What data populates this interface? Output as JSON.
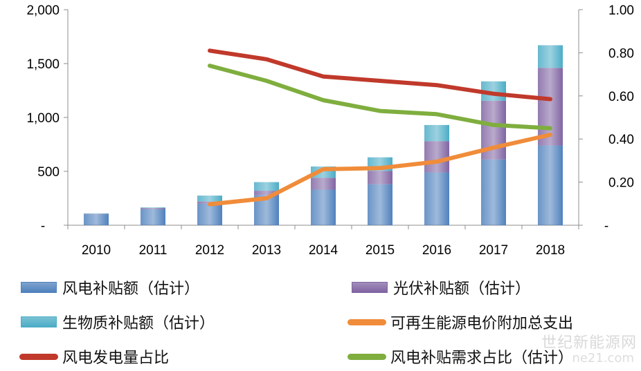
{
  "chart_data": {
    "type": "bar",
    "categories": [
      "2010",
      "2011",
      "2012",
      "2013",
      "2014",
      "2015",
      "2016",
      "2017",
      "2018"
    ],
    "ylim_left": [
      0,
      2000
    ],
    "yticks_left": [
      "-",
      "500",
      "1,000",
      "1,500",
      "2,000"
    ],
    "ylim_right": [
      0,
      1.0
    ],
    "yticks_right": [
      "-",
      "0.20",
      "0.40",
      "0.60",
      "0.80",
      "1.00"
    ],
    "stacked_series": [
      {
        "name": "风电补贴额（估计）",
        "color": "#4f81bd",
        "values": [
          100,
          150,
          200,
          280,
          330,
          380,
          490,
          610,
          740
        ]
      },
      {
        "name": "光伏补贴额（估计）",
        "color": "#8064a2",
        "values": [
          5,
          10,
          20,
          40,
          110,
          125,
          290,
          545,
          720
        ]
      },
      {
        "name": "生物质补贴额（估计）",
        "color": "#4bacc6",
        "values": [
          5,
          5,
          55,
          80,
          105,
          125,
          150,
          180,
          210
        ]
      }
    ],
    "line_series": [
      {
        "name": "可再生能源电价附加总支出",
        "color": "#f08c3a",
        "axis": "left",
        "start_index": 2,
        "values": [
          195,
          250,
          520,
          530,
          590,
          720,
          840
        ]
      },
      {
        "name": "风电发电量占比",
        "color": "#c0392b",
        "axis": "right",
        "start_index": 2,
        "values": [
          0.81,
          0.77,
          0.69,
          0.67,
          0.65,
          0.61,
          0.585
        ]
      },
      {
        "name": "风电补贴需求占比（估计）",
        "color": "#7fae3e",
        "axis": "right",
        "start_index": 2,
        "values": [
          0.74,
          0.67,
          0.58,
          0.53,
          0.515,
          0.465,
          0.45
        ]
      }
    ],
    "legend": [
      {
        "label": "风电补贴额（估计）",
        "kind": "box",
        "color": "#4f81bd"
      },
      {
        "label": "光伏补贴额（估计）",
        "kind": "box",
        "color": "#8064a2"
      },
      {
        "label": "生物质补贴额（估计）",
        "kind": "box",
        "color": "#4bacc6"
      },
      {
        "label": "可再生能源电价附加总支出",
        "kind": "line",
        "color": "#f08c3a"
      },
      {
        "label": "风电发电量占比",
        "kind": "line",
        "color": "#c0392b"
      },
      {
        "label": "风电补贴需求占比（估计）",
        "kind": "line",
        "color": "#7fae3e"
      }
    ],
    "legend_placement": "bottom",
    "grid": false
  },
  "watermark": {
    "text": "世纪新能源网",
    "sub": "ne21.com"
  }
}
